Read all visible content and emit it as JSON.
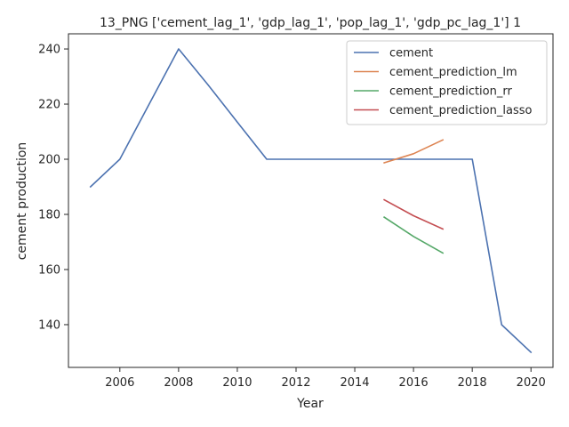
{
  "chart_data": {
    "type": "line",
    "title": "13_PNG ['cement_lag_1', 'gdp_lag_1', 'pop_lag_1', 'gdp_pc_lag_1'] 1",
    "xlabel": "Year",
    "ylabel": "cement production",
    "xlim": [
      2004.25,
      2020.75
    ],
    "ylim": [
      124.5,
      245.5
    ],
    "xticks": [
      2006,
      2008,
      2010,
      2012,
      2014,
      2016,
      2018,
      2020
    ],
    "yticks": [
      140,
      160,
      180,
      200,
      220,
      240
    ],
    "grid": false,
    "legend_position": "upper right",
    "series": [
      {
        "name": "cement",
        "color": "#4c72b0",
        "x": [
          2005,
          2006,
          2007,
          2008,
          2009,
          2010,
          2011,
          2012,
          2013,
          2014,
          2015,
          2016,
          2017,
          2018,
          2019,
          2020
        ],
        "y": [
          190,
          200,
          220,
          240,
          227,
          213.5,
          200,
          200,
          200,
          200,
          200,
          200,
          200,
          200,
          140,
          130
        ]
      },
      {
        "name": "cement_prediction_lm",
        "color": "#dd8452",
        "x": [
          2015,
          2016,
          2017
        ],
        "y": [
          198.7,
          202,
          207
        ]
      },
      {
        "name": "cement_prediction_rr",
        "color": "#55a868",
        "x": [
          2015,
          2016,
          2017
        ],
        "y": [
          179,
          172,
          166
        ]
      },
      {
        "name": "cement_prediction_lasso",
        "color": "#c44e52",
        "x": [
          2015,
          2016,
          2017
        ],
        "y": [
          185.3,
          179.5,
          174.7
        ]
      }
    ]
  }
}
